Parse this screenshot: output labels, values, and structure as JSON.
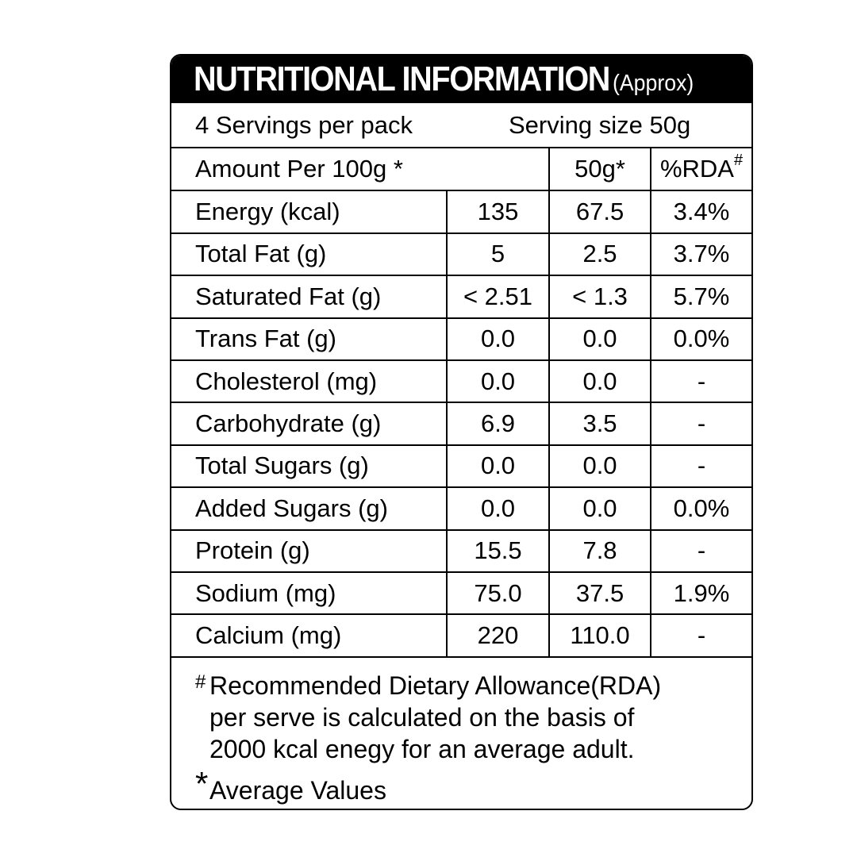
{
  "header": {
    "title": "NUTRITIONAL INFORMATION",
    "subtitle": "(Approx)"
  },
  "serving": {
    "per_pack": "4 Servings per pack",
    "size": "Serving size 50g"
  },
  "columns": {
    "amount_label": "Amount Per 100g *",
    "serving_col": "50g*",
    "rda_col": "%RDA",
    "rda_mark": "#"
  },
  "rows": [
    {
      "name": "Energy (kcal)",
      "per100": "135",
      "per50": "67.5",
      "rda": "3.4%"
    },
    {
      "name": "Total Fat (g)",
      "per100": "5",
      "per50": "2.5",
      "rda": "3.7%"
    },
    {
      "name": "Saturated Fat (g)",
      "per100": "< 2.51",
      "per50": "< 1.3",
      "rda": "5.7%"
    },
    {
      "name": "Trans Fat (g)",
      "per100": "0.0",
      "per50": "0.0",
      "rda": "0.0%"
    },
    {
      "name": "Cholesterol (mg)",
      "per100": "0.0",
      "per50": "0.0",
      "rda": "-"
    },
    {
      "name": "Carbohydrate (g)",
      "per100": "6.9",
      "per50": "3.5",
      "rda": "-"
    },
    {
      "name": "Total Sugars (g)",
      "per100": "0.0",
      "per50": "0.0",
      "rda": "-"
    },
    {
      "name": "Added Sugars (g)",
      "per100": "0.0",
      "per50": "0.0",
      "rda": "0.0%"
    },
    {
      "name": "Protein (g)",
      "per100": "15.5",
      "per50": "7.8",
      "rda": "-"
    },
    {
      "name": "Sodium (mg)",
      "per100": "75.0",
      "per50": "37.5",
      "rda": "1.9%"
    },
    {
      "name": "Calcium (mg)",
      "per100": "220",
      "per50": "110.0",
      "rda": "-"
    }
  ],
  "footnote": {
    "hash_mark": "#",
    "line1": "Recommended Dietary Allowance(RDA)",
    "line2": "per serve is calculated on the basis of",
    "line3": "2000 kcal enegy for an average adult.",
    "star_mark": "*",
    "average": "Average Values"
  }
}
